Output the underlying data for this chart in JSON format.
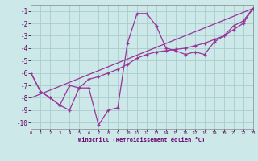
{
  "xlabel": "Windchill (Refroidissement éolien,°C)",
  "bg_color": "#cce8e8",
  "grid_color": "#aacccc",
  "line_color": "#993399",
  "x_min": 0,
  "x_max": 23,
  "y_min": -10.5,
  "y_max": -0.5,
  "yticks": [
    -10,
    -9,
    -8,
    -7,
    -6,
    -5,
    -4,
    -3,
    -2,
    -1
  ],
  "xticks": [
    0,
    1,
    2,
    3,
    4,
    5,
    6,
    7,
    8,
    9,
    10,
    11,
    12,
    13,
    14,
    15,
    16,
    17,
    18,
    19,
    20,
    21,
    22,
    23
  ],
  "curve1_x": [
    0,
    1,
    2,
    3,
    4,
    5,
    6,
    7,
    8,
    9,
    10,
    11,
    12,
    13,
    14,
    15,
    16,
    17,
    18,
    19,
    20,
    21,
    22,
    23
  ],
  "curve1_y": [
    -6.0,
    -7.5,
    -8.0,
    -8.6,
    -9.0,
    -7.2,
    -7.2,
    -10.2,
    -9.0,
    -8.8,
    -3.6,
    -1.2,
    -1.2,
    -2.2,
    -4.0,
    -4.2,
    -4.5,
    -4.3,
    -4.5,
    -3.5,
    -3.0,
    -2.2,
    -1.8,
    -0.8
  ],
  "curve2_x": [
    0,
    1,
    2,
    3,
    4,
    5,
    6,
    7,
    8,
    9,
    10,
    11,
    12,
    13,
    14,
    15,
    16,
    17,
    18,
    19,
    20,
    21,
    22,
    23
  ],
  "curve2_y": [
    -6.0,
    -7.5,
    -8.0,
    -8.6,
    -7.0,
    -7.2,
    -6.5,
    -6.3,
    -6.0,
    -5.7,
    -5.3,
    -4.8,
    -4.5,
    -4.3,
    -4.2,
    -4.1,
    -4.0,
    -3.8,
    -3.6,
    -3.3,
    -3.0,
    -2.5,
    -2.0,
    -0.8
  ],
  "line3_x": [
    0,
    23
  ],
  "line3_y": [
    -8.0,
    -0.8
  ]
}
